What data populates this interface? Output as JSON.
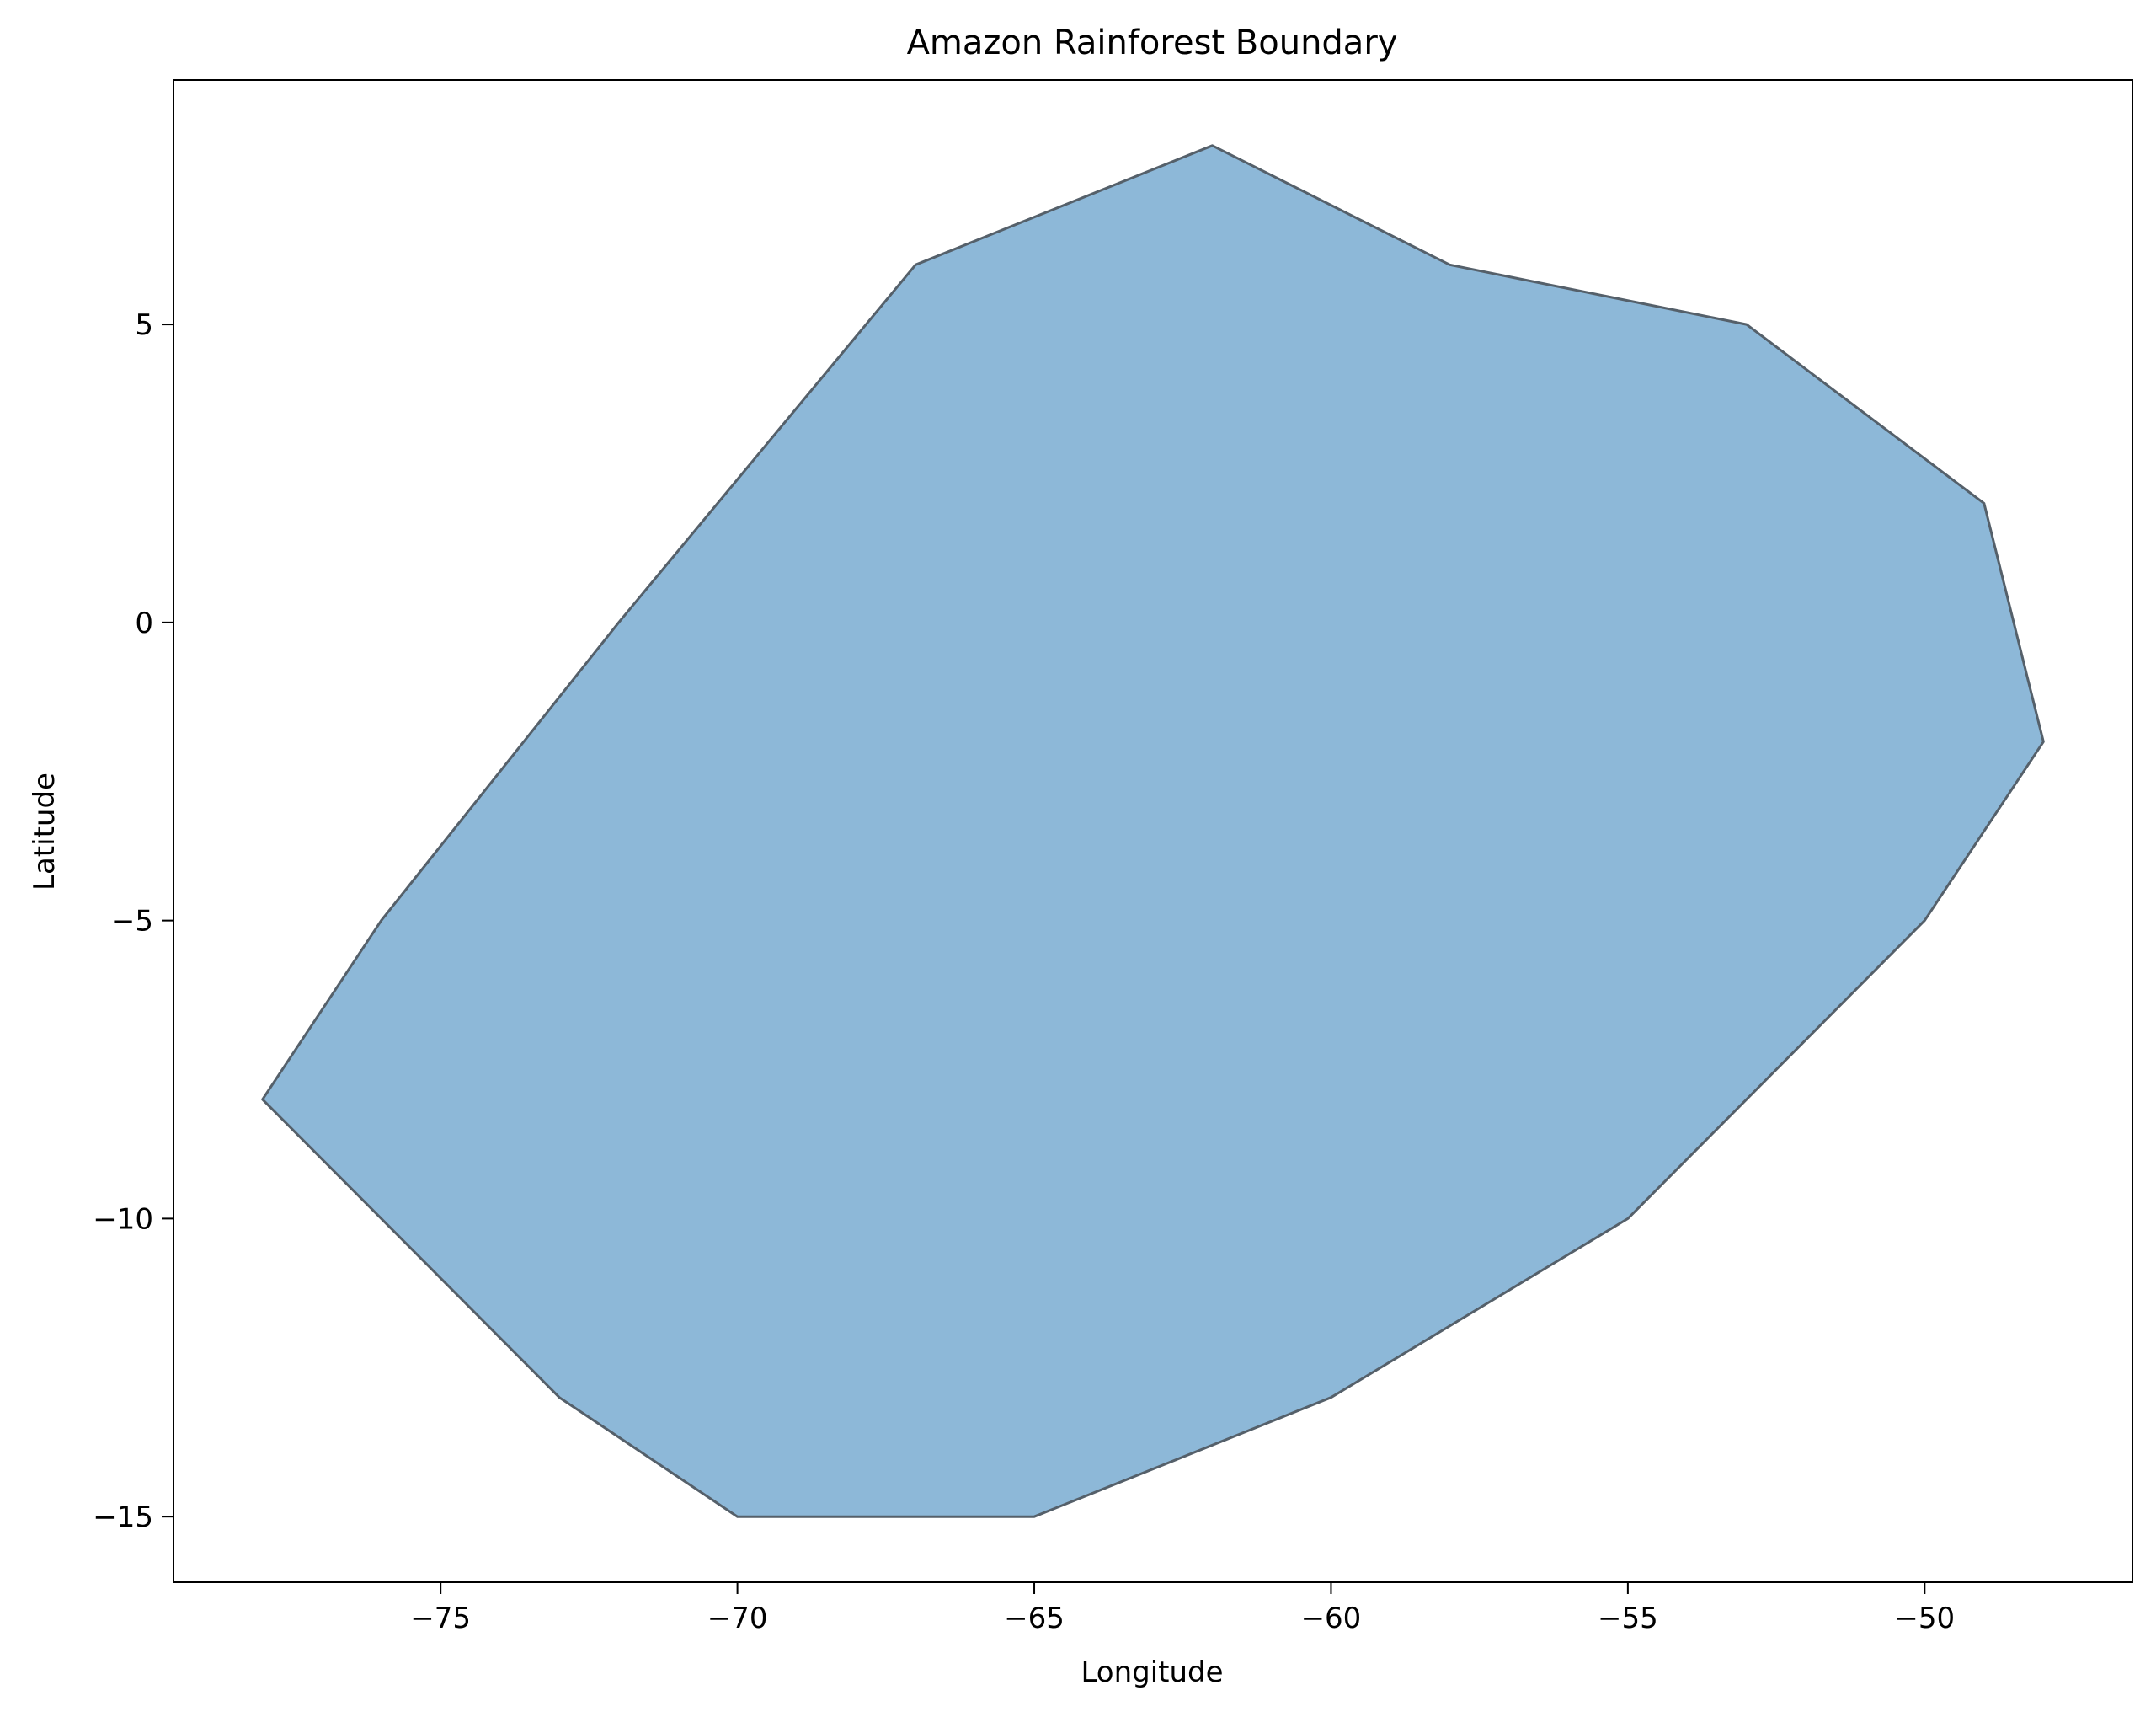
{
  "chart_data": {
    "type": "area",
    "title": "Amazon Rainforest Boundary",
    "xlabel": "Longitude",
    "ylabel": "Latitude",
    "xlim": [
      -79.5,
      -46.5
    ],
    "ylim": [
      -16.1,
      9.1
    ],
    "xticks": [
      -75,
      -70,
      -65,
      -60,
      -55,
      -50
    ],
    "yticks": [
      5,
      0,
      -5,
      -10,
      -15
    ],
    "grid": false,
    "polygon": {
      "x": [
        -78,
        -76,
        -72,
        -67,
        -62,
        -58,
        -53,
        -49,
        -48,
        -50,
        -55,
        -60,
        -65,
        -70,
        -73,
        -78
      ],
      "y": [
        -8,
        -5,
        0,
        6,
        8,
        6,
        5,
        2,
        -2,
        -5,
        -10,
        -13,
        -15,
        -15,
        -13,
        -8
      ],
      "fill_color": "#8db8d8",
      "edge_color": "#55606a"
    }
  }
}
